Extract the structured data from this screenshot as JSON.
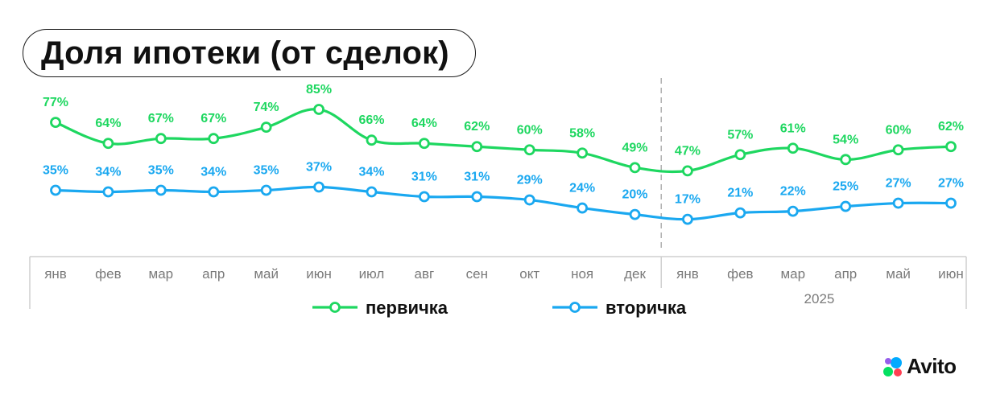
{
  "title": "Доля ипотеки (от сделок)",
  "brand": "Avito",
  "chart_data": {
    "type": "line",
    "categories": [
      "янв",
      "фев",
      "мар",
      "апр",
      "май",
      "июн",
      "июл",
      "авг",
      "сен",
      "окт",
      "ноя",
      "дек",
      "янв",
      "фев",
      "мар",
      "апр",
      "май",
      "июн"
    ],
    "year_group_label": "2025",
    "series": [
      {
        "name": "первичка",
        "color": "#1ed760",
        "values": [
          77,
          64,
          67,
          67,
          74,
          85,
          66,
          64,
          62,
          60,
          58,
          49,
          47,
          57,
          61,
          54,
          60,
          62
        ]
      },
      {
        "name": "вторичка",
        "color": "#1aa8f0",
        "values": [
          35,
          34,
          35,
          34,
          35,
          37,
          34,
          31,
          31,
          29,
          24,
          20,
          17,
          21,
          22,
          25,
          27,
          27
        ]
      }
    ],
    "value_suffix": "%",
    "legend": "bottom-center",
    "grid": false
  }
}
